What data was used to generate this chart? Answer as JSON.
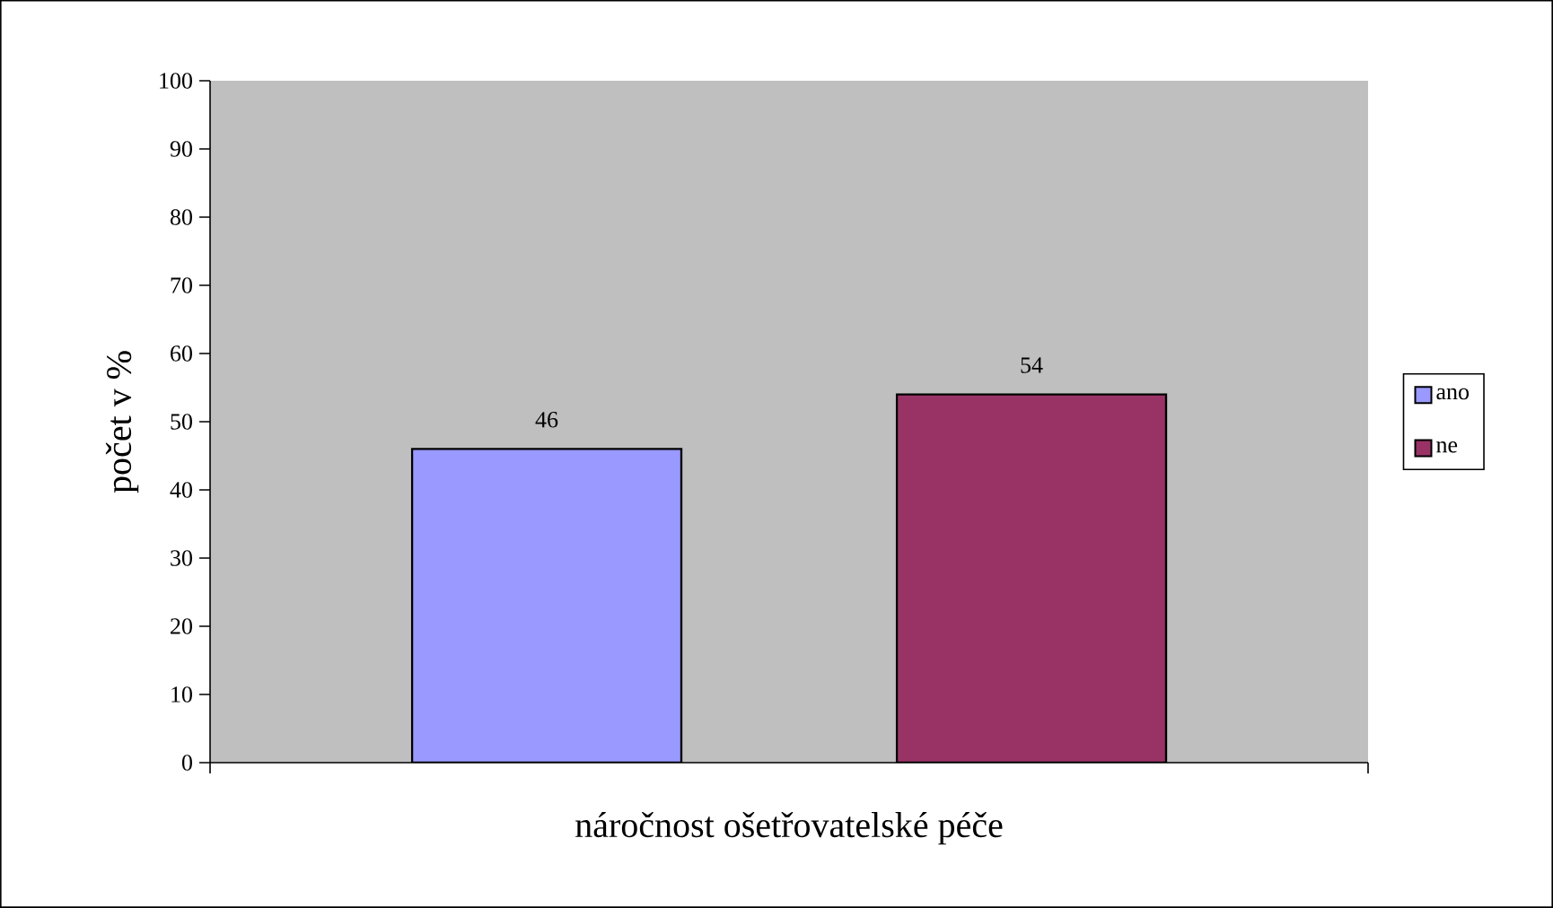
{
  "chart_data": {
    "type": "bar",
    "xlabel": "náročnost ošetřovatelské péče",
    "ylabel": "počet v %",
    "categories": [
      null
    ],
    "series": [
      {
        "name": "ano",
        "color": "#9999ff",
        "values": [
          46
        ]
      },
      {
        "name": "ne",
        "color": "#993366",
        "values": [
          54
        ]
      }
    ],
    "ylim": [
      0,
      100
    ],
    "yticks": [
      0,
      10,
      20,
      30,
      40,
      50,
      60,
      70,
      80,
      90,
      100
    ],
    "data_labels": true,
    "legend": "right",
    "grid": false
  }
}
